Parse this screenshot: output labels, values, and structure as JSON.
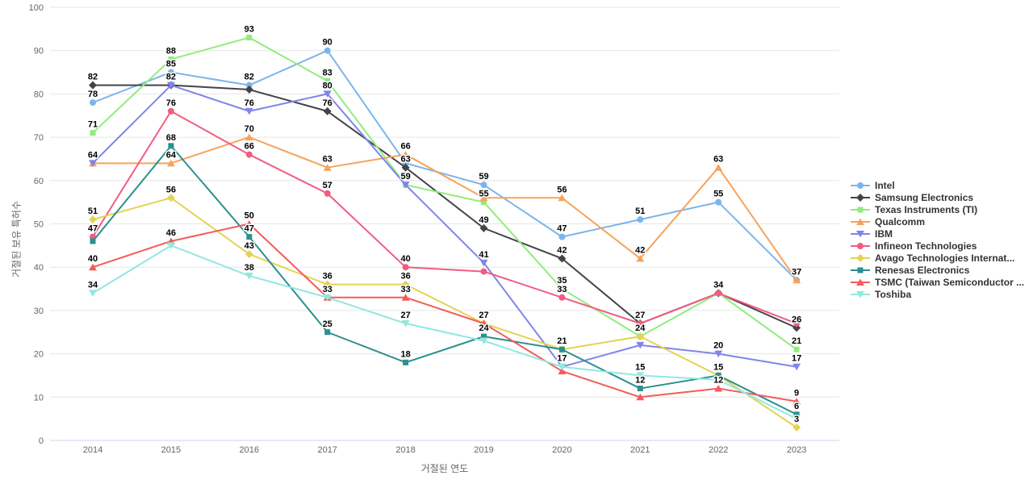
{
  "chart_data": {
    "type": "line",
    "title": "",
    "xlabel": "거절된 연도",
    "ylabel": "거절된 보유 특허수",
    "categories": [
      "2014",
      "2015",
      "2016",
      "2017",
      "2018",
      "2019",
      "2020",
      "2021",
      "2022",
      "2023"
    ],
    "ylim": [
      0,
      100
    ],
    "yticks": [
      0,
      10,
      20,
      30,
      40,
      50,
      60,
      70,
      80,
      90,
      100
    ],
    "grid": "horizontal",
    "legend_position": "right",
    "series": [
      {
        "name": "Intel",
        "color": "#7cb5ec",
        "marker": "circle",
        "values": [
          78,
          85,
          82,
          90,
          64,
          59,
          47,
          51,
          55,
          37
        ],
        "label_visible": [
          1,
          1,
          1,
          1,
          0,
          1,
          1,
          1,
          1,
          1
        ]
      },
      {
        "name": "Samsung Electronics",
        "color": "#434348",
        "marker": "diamond",
        "values": [
          82,
          82,
          81,
          76,
          63,
          49,
          42,
          27,
          34,
          26
        ],
        "label_visible": [
          1,
          1,
          0,
          1,
          1,
          1,
          1,
          0,
          0,
          1
        ]
      },
      {
        "name": "Texas Instruments (TI)",
        "color": "#90ed7d",
        "marker": "square",
        "values": [
          71,
          88,
          93,
          83,
          59,
          55,
          35,
          24,
          34,
          21
        ],
        "label_visible": [
          1,
          1,
          1,
          1,
          1,
          1,
          1,
          0,
          0,
          1
        ]
      },
      {
        "name": "Qualcomm",
        "color": "#f7a35c",
        "marker": "triangle",
        "values": [
          64,
          64,
          70,
          63,
          66,
          56,
          56,
          42,
          63,
          37
        ],
        "label_visible": [
          0,
          1,
          1,
          1,
          1,
          0,
          1,
          1,
          1,
          0
        ]
      },
      {
        "name": "IBM",
        "color": "#8085e9",
        "marker": "triangle-down",
        "values": [
          64,
          82,
          76,
          80,
          59,
          41,
          17,
          22,
          20,
          17
        ],
        "label_visible": [
          1,
          0,
          1,
          1,
          0,
          1,
          1,
          0,
          1,
          1
        ]
      },
      {
        "name": "Infineon Technologies",
        "color": "#f15c80",
        "marker": "circle",
        "values": [
          47,
          76,
          66,
          57,
          40,
          39,
          33,
          27,
          34,
          27
        ],
        "label_visible": [
          1,
          1,
          1,
          1,
          1,
          0,
          1,
          1,
          1,
          0
        ]
      },
      {
        "name": "Avago Technologies Internat...",
        "color": "#e4d354",
        "marker": "diamond",
        "values": [
          51,
          56,
          43,
          36,
          36,
          27,
          21,
          24,
          15,
          3
        ],
        "label_visible": [
          1,
          1,
          1,
          1,
          1,
          0,
          1,
          1,
          0,
          1
        ]
      },
      {
        "name": "Renesas Electronics",
        "color": "#2b908f",
        "marker": "square",
        "values": [
          46,
          68,
          47,
          25,
          18,
          24,
          21,
          12,
          15,
          6
        ],
        "label_visible": [
          0,
          1,
          1,
          1,
          1,
          1,
          0,
          1,
          1,
          1
        ]
      },
      {
        "name": "TSMC (Taiwan Semiconductor ...",
        "color": "#f45b5b",
        "marker": "triangle",
        "values": [
          40,
          46,
          50,
          33,
          33,
          27,
          16,
          10,
          12,
          9
        ],
        "label_visible": [
          1,
          1,
          1,
          1,
          1,
          1,
          0,
          0,
          1,
          1
        ]
      },
      {
        "name": "Toshiba",
        "color": "#91e8e1",
        "marker": "triangle-down",
        "values": [
          34,
          45,
          38,
          33,
          27,
          23,
          17,
          15,
          14,
          5
        ],
        "label_visible": [
          1,
          0,
          1,
          0,
          1,
          0,
          0,
          1,
          0,
          0
        ]
      }
    ]
  },
  "axis_style": {
    "grid_color": "#e6e6e6",
    "axis_line_color": "#ccd6eb",
    "tick_label_color": "#666666",
    "title_color": "#666666",
    "data_label_color": "#000000"
  }
}
